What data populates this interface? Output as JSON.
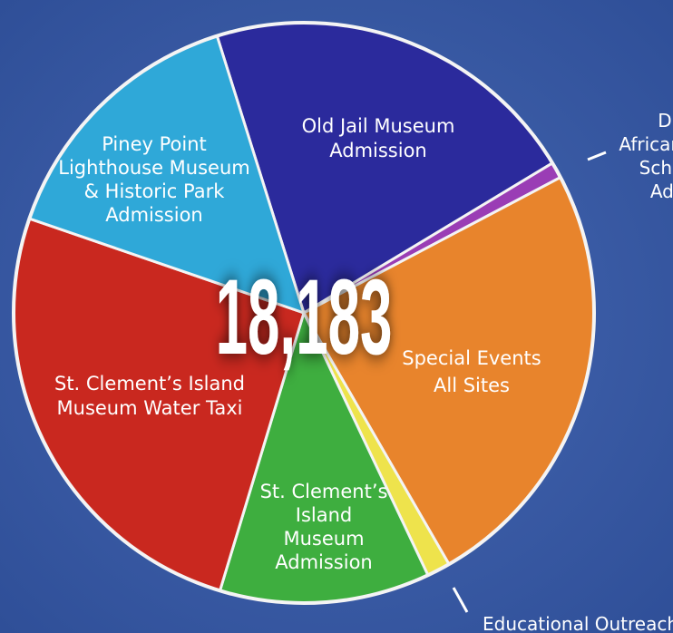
{
  "chart_data": {
    "type": "pie",
    "center_label": "18,183",
    "categories": [
      [
        "Old Jail Museum",
        "Admission"
      ],
      [
        "Drayden",
        "African American",
        "Schoolhouse",
        "Admission"
      ],
      [
        "Special Events",
        "All Sites"
      ],
      [
        "Educational Outreach"
      ],
      [
        "St. Clement’s",
        "Island",
        "Museum",
        "Admission"
      ],
      [
        "St. Clement’s Island",
        "Museum Water Taxi"
      ],
      [
        "Piney Point",
        "Lighthouse Museum",
        "& Historic Park",
        "Admission"
      ]
    ],
    "values": [
      21.2,
      0.9,
      24.4,
      1.3,
      11.7,
      25.6,
      14.9
    ],
    "colors": [
      "#2b2a9c",
      "#9a3db5",
      "#e8842c",
      "#eee34c",
      "#3eae3f",
      "#c9281f",
      "#2fa8d8"
    ]
  }
}
